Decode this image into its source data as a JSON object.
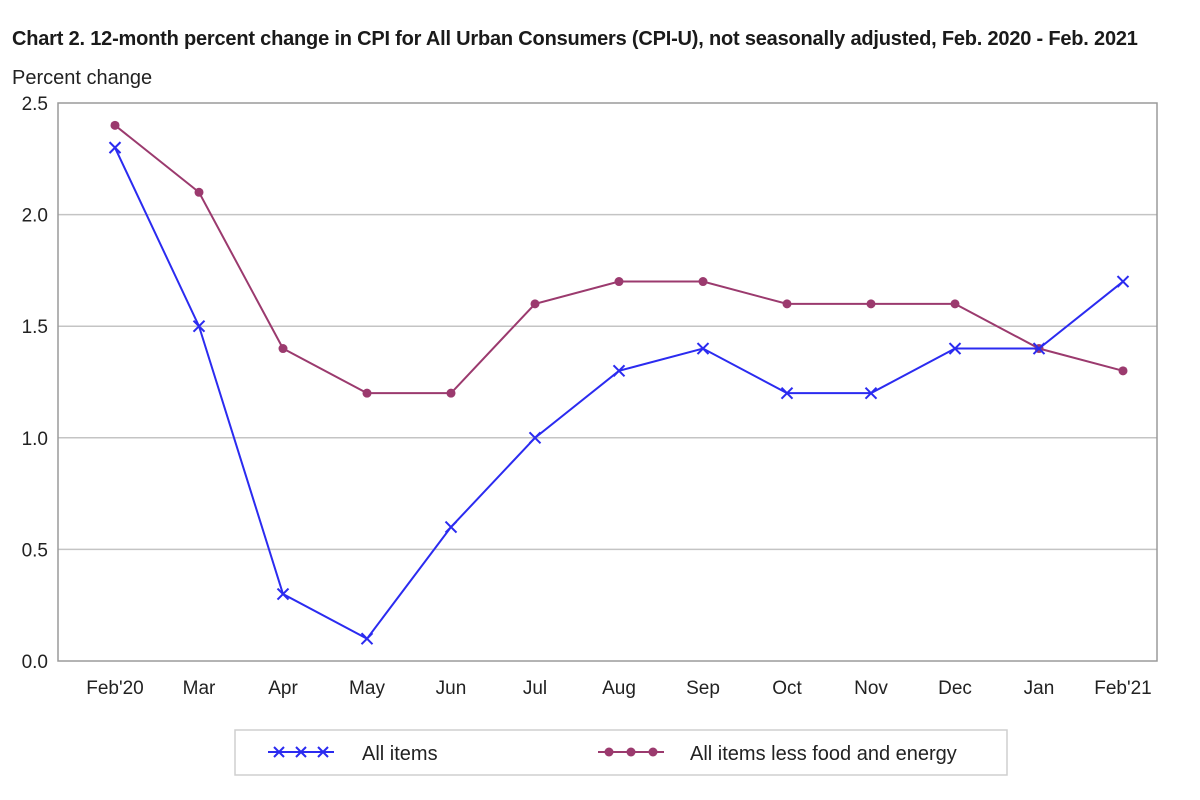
{
  "chart_data": {
    "type": "line",
    "title": "Chart 2. 12-month percent change in CPI for All Urban Consumers (CPI-U), not seasonally adjusted, Feb. 2020 - Feb. 2021",
    "ylabel": "Percent change",
    "xlabel": "",
    "categories": [
      "Feb'20",
      "Mar",
      "Apr",
      "May",
      "Jun",
      "Jul",
      "Aug",
      "Sep",
      "Oct",
      "Nov",
      "Dec",
      "Jan",
      "Feb'21"
    ],
    "ylim": [
      0,
      2.5
    ],
    "yticks": [
      "0.0",
      "0.5",
      "1.0",
      "1.5",
      "2.0",
      "2.5"
    ],
    "grid": "horizontal",
    "legend_position": "bottom",
    "series": [
      {
        "name": "All items",
        "values": [
          2.3,
          1.5,
          0.3,
          0.1,
          0.6,
          1.0,
          1.3,
          1.4,
          1.2,
          1.2,
          1.4,
          1.4,
          1.7
        ],
        "color": "#2b2bf0",
        "marker": "x"
      },
      {
        "name": "All items less food and energy",
        "values": [
          2.4,
          2.1,
          1.4,
          1.2,
          1.2,
          1.6,
          1.7,
          1.7,
          1.6,
          1.6,
          1.6,
          1.4,
          1.3
        ],
        "color": "#9b3a6e",
        "marker": "dot"
      }
    ]
  }
}
